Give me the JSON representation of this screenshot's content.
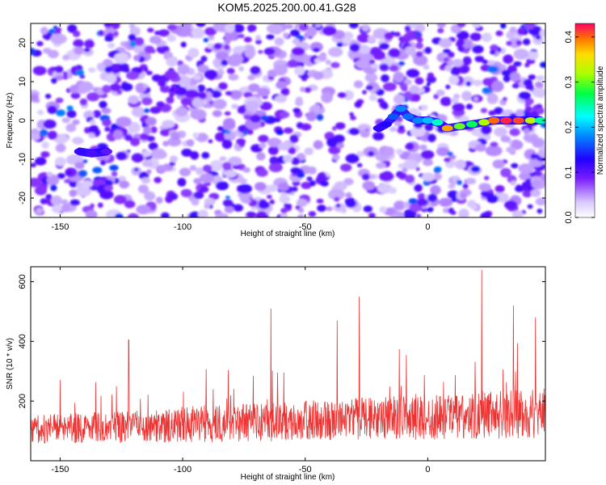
{
  "title": "KOM5.2025.200.00.41.G28",
  "chart_data": [
    {
      "type": "heatmap",
      "xlabel": "Height of straight line (km)",
      "ylabel": "Frequency (Hz)",
      "xlim": [
        -162,
        48
      ],
      "ylim": [
        -25,
        25
      ],
      "xticks": [
        -150,
        -100,
        -50,
        0
      ],
      "yticks": [
        -20,
        -10,
        0,
        10,
        20
      ],
      "colorbar": {
        "label": "Normalized spectral amplitude",
        "range": [
          0,
          0.43
        ],
        "ticks": [
          "0.0",
          "0.1",
          "0.2",
          "0.3",
          "0.4"
        ]
      },
      "ridge": [
        {
          "x": -20,
          "y": -2,
          "amp": 0.12
        },
        {
          "x": -17,
          "y": -1,
          "amp": 0.13
        },
        {
          "x": -14,
          "y": 1,
          "amp": 0.16
        },
        {
          "x": -11,
          "y": 3,
          "amp": 0.18
        },
        {
          "x": -8,
          "y": 1,
          "amp": 0.17
        },
        {
          "x": -4,
          "y": 0,
          "amp": 0.18
        },
        {
          "x": 0,
          "y": 0,
          "amp": 0.2
        },
        {
          "x": 4,
          "y": -0.5,
          "amp": 0.24
        },
        {
          "x": 8,
          "y": -2,
          "amp": 0.38
        },
        {
          "x": 13,
          "y": -1.5,
          "amp": 0.3
        },
        {
          "x": 18,
          "y": -1,
          "amp": 0.27
        },
        {
          "x": 23,
          "y": -0.5,
          "amp": 0.32
        },
        {
          "x": 27,
          "y": 0,
          "amp": 0.4
        },
        {
          "x": 32,
          "y": 0,
          "amp": 0.42
        },
        {
          "x": 37,
          "y": 0,
          "amp": 0.41
        },
        {
          "x": 42,
          "y": 0,
          "amp": 0.33
        },
        {
          "x": 46,
          "y": 0,
          "amp": 0.25
        }
      ],
      "isolated_track": [
        {
          "x": -142,
          "y": -8,
          "amp": 0.12
        },
        {
          "x": -137,
          "y": -8.5,
          "amp": 0.11
        },
        {
          "x": -131,
          "y": -8,
          "amp": 0.1
        }
      ]
    },
    {
      "type": "line",
      "xlabel": "Height of straight line (km)",
      "ylabel": "SNR (10 * v/v)",
      "xlim": [
        -162,
        48
      ],
      "ylim": [
        0,
        650
      ],
      "xticks": [
        -150,
        -100,
        -50,
        0
      ],
      "yticks": [
        200,
        400,
        600
      ],
      "series": [
        {
          "color": "#ee3333",
          "baseline_start": 100,
          "baseline_end": 150,
          "noise_amplitude": 120,
          "peaks": [
            {
              "x": -150,
              "y": 270
            },
            {
              "x": -122,
              "y": 405
            },
            {
              "x": -64,
              "y": 510
            },
            {
              "x": -37,
              "y": 470
            },
            {
              "x": -28,
              "y": 550
            },
            {
              "x": 22,
              "y": 640
            },
            {
              "x": 35,
              "y": 520
            },
            {
              "x": 44,
              "y": 480
            }
          ]
        }
      ]
    }
  ]
}
